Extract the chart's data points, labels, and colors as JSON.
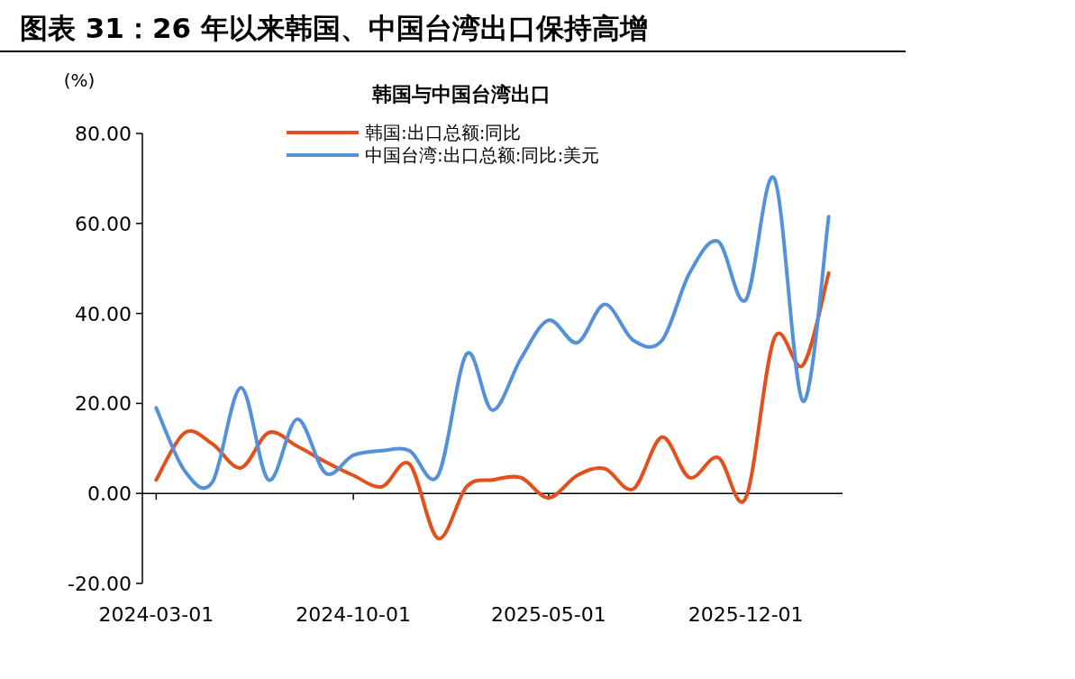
{
  "chart_data": {
    "type": "line",
    "title": "图表 31：26 年以来韩国、中国台湾出口保持高增",
    "subtitle": "韩国与中国台湾出口",
    "ylabel": "(%)",
    "x": [
      "2024-03",
      "2024-04",
      "2024-05",
      "2024-06",
      "2024-07",
      "2024-08",
      "2024-09",
      "2024-10",
      "2024-11",
      "2024-12",
      "2025-01",
      "2025-02",
      "2025-03",
      "2025-04",
      "2025-05",
      "2025-06",
      "2025-07",
      "2025-08",
      "2025-09",
      "2025-10",
      "2025-11",
      "2025-12",
      "2026-01",
      "2026-02",
      "2026-03"
    ],
    "series": [
      {
        "name": "韩国:出口总额:同比",
        "color": "#e1511e",
        "values": [
          3,
          13.5,
          11,
          5.7,
          13.5,
          10.5,
          7,
          4,
          1.5,
          6.5,
          -10,
          1.5,
          3,
          3.5,
          -1,
          4,
          5.5,
          1,
          12.5,
          3.5,
          8,
          -1,
          34.5,
          28.5,
          49
        ]
      },
      {
        "name": "中国台湾:出口总额:同比:美元",
        "color": "#5591d8",
        "values": [
          19,
          5,
          2.5,
          23.5,
          3,
          16.5,
          4.5,
          8.5,
          9.5,
          9.5,
          4,
          31,
          18.5,
          30,
          38.5,
          33.5,
          42,
          34,
          34,
          49,
          56,
          43,
          70,
          20.5,
          61.5
        ]
      }
    ],
    "xlim": [
      "2024-02-15",
      "2026-03-16"
    ],
    "xticks": [
      "2024-03-01",
      "2024-10-01",
      "2025-05-01",
      "2025-12-01"
    ],
    "ylim": [
      -20,
      80
    ],
    "yticks": [
      {
        "value": -20,
        "label": "-20.00"
      },
      {
        "value": 0,
        "label": "0.00"
      },
      {
        "value": 20,
        "label": "20.00"
      },
      {
        "value": 40,
        "label": "40.00"
      },
      {
        "value": 60,
        "label": "60.00"
      },
      {
        "value": 80,
        "label": "80.00"
      }
    ],
    "legend": "top",
    "marker": "none",
    "line_style": "solid"
  }
}
